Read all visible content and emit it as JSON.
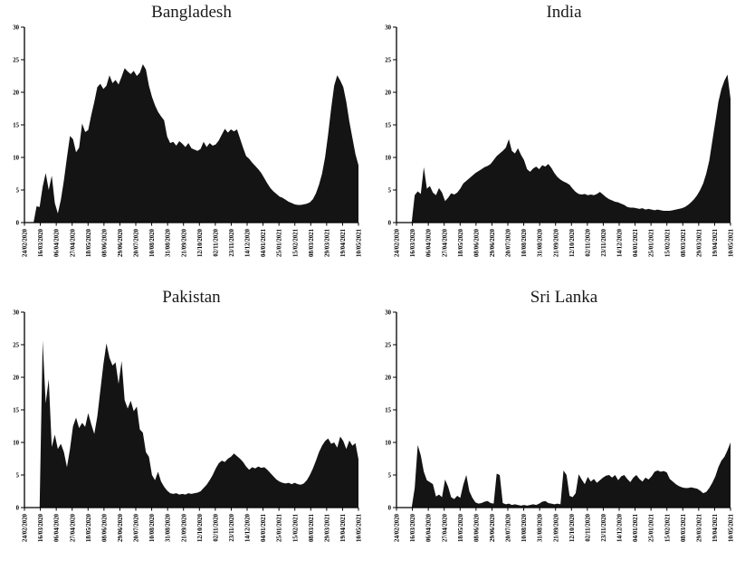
{
  "figure": {
    "background": "#ffffff",
    "ink": "#000000",
    "title_color": "#1a1a1a"
  },
  "chart_data": [
    {
      "type": "area",
      "title": "Bangladesh",
      "fill_color": "#141414",
      "ylim": [
        0,
        30
      ],
      "y_ticks": [
        0,
        5,
        10,
        15,
        20,
        25,
        30
      ],
      "x_range": [
        "24/02/2020",
        "10/05/2021"
      ],
      "x_labels": [
        "24/02/2020",
        "16/03/2020",
        "06/04/2020",
        "27/04/2020",
        "18/05/2020",
        "08/06/2020",
        "29/06/2020",
        "20/07/2020",
        "10/08/2020",
        "31/08/2020",
        "21/09/2020",
        "12/10/2020",
        "02/11/2020",
        "23/11/2020",
        "14/12/2020",
        "04/01/2021",
        "25/01/2021",
        "15/02/2021",
        "08/03/2021",
        "29/03/2021",
        "19/04/2021",
        "10/05/2021"
      ],
      "values": [
        0,
        0,
        0,
        0,
        2.5,
        2.4,
        5.5,
        7.6,
        5.0,
        7.2,
        3.0,
        1.4,
        3.5,
        6.5,
        10.0,
        13.3,
        12.8,
        10.8,
        11.5,
        15.2,
        13.9,
        14.2,
        16.5,
        18.5,
        20.8,
        21.3,
        20.5,
        21.0,
        22.6,
        21.4,
        21.9,
        21.2,
        22.4,
        23.7,
        23.2,
        22.8,
        23.3,
        22.5,
        23.0,
        24.3,
        23.5,
        21.0,
        19.3,
        18.0,
        17.0,
        16.3,
        15.7,
        13.2,
        12.2,
        12.4,
        11.8,
        12.5,
        12.1,
        11.6,
        12.2,
        11.4,
        11.2,
        11.0,
        11.3,
        12.4,
        11.6,
        12.2,
        11.8,
        12.0,
        12.6,
        13.5,
        14.4,
        13.8,
        14.3,
        14.0,
        14.3,
        12.9,
        11.5,
        10.2,
        9.8,
        9.2,
        8.7,
        8.2,
        7.6,
        6.8,
        6.0,
        5.3,
        4.8,
        4.4,
        4.0,
        3.8,
        3.5,
        3.2,
        3.0,
        2.8,
        2.7,
        2.7,
        2.8,
        2.9,
        3.1,
        3.6,
        4.5,
        5.8,
        7.5,
        10.0,
        13.5,
        17.5,
        21.0,
        22.6,
        21.8,
        20.8,
        18.5,
        15.5,
        13.0,
        10.5,
        8.8
      ]
    },
    {
      "type": "area",
      "title": "India",
      "fill_color": "#141414",
      "ylim": [
        0,
        30
      ],
      "y_ticks": [
        0,
        5,
        10,
        15,
        20,
        25,
        30
      ],
      "x_range": [
        "24/02/2020",
        "10/05/2021"
      ],
      "x_labels": [
        "24/02/2020",
        "16/03/2020",
        "06/04/2020",
        "27/04/2020",
        "18/05/2020",
        "08/06/2020",
        "29/06/2020",
        "20/07/2020",
        "10/08/2020",
        "31/08/2020",
        "21/09/2020",
        "12/10/2020",
        "02/11/2020",
        "23/11/2020",
        "14/12/2020",
        "04/01/2021",
        "25/01/2021",
        "15/02/2021",
        "08/03/2021",
        "29/03/2021",
        "19/04/2021",
        "10/05/2021"
      ],
      "values": [
        0,
        0,
        0,
        0,
        0,
        0,
        4.2,
        4.8,
        4.4,
        8.5,
        5.2,
        5.6,
        4.6,
        4.2,
        5.3,
        4.6,
        3.3,
        3.8,
        4.5,
        4.3,
        4.6,
        5.2,
        6.0,
        6.4,
        6.8,
        7.2,
        7.6,
        7.9,
        8.2,
        8.5,
        8.7,
        9.0,
        9.6,
        10.2,
        10.6,
        11.0,
        11.5,
        12.8,
        11.0,
        10.6,
        11.4,
        10.4,
        9.6,
        8.2,
        7.8,
        8.3,
        8.6,
        8.2,
        8.8,
        8.6,
        9.0,
        8.4,
        7.6,
        7.0,
        6.6,
        6.3,
        6.1,
        5.8,
        5.2,
        4.7,
        4.4,
        4.3,
        4.4,
        4.2,
        4.3,
        4.2,
        4.4,
        4.7,
        4.3,
        3.9,
        3.6,
        3.4,
        3.2,
        3.1,
        2.9,
        2.7,
        2.4,
        2.3,
        2.3,
        2.2,
        2.1,
        2.2,
        2.0,
        2.1,
        2.0,
        1.9,
        2.0,
        1.9,
        1.8,
        1.8,
        1.8,
        1.9,
        2.0,
        2.1,
        2.2,
        2.4,
        2.7,
        3.1,
        3.6,
        4.2,
        5.0,
        6.0,
        7.5,
        9.5,
        12.5,
        15.5,
        18.5,
        20.5,
        21.8,
        22.7,
        19.0
      ]
    },
    {
      "type": "area",
      "title": "Pakistan",
      "fill_color": "#141414",
      "ylim": [
        0,
        30
      ],
      "y_ticks": [
        0,
        5,
        10,
        15,
        20,
        25,
        30
      ],
      "x_range": [
        "24/02/2020",
        "10/05/2021"
      ],
      "x_labels": [
        "24/02/2020",
        "16/03/2020",
        "06/04/2020",
        "27/04/2020",
        "18/05/2020",
        "08/06/2020",
        "29/06/2020",
        "20/07/2020",
        "10/08/2020",
        "31/08/2020",
        "21/09/2020",
        "12/10/2020",
        "02/11/2020",
        "23/11/2020",
        "14/12/2020",
        "04/01/2021",
        "25/01/2021",
        "15/02/2021",
        "08/03/2021",
        "29/03/2021",
        "19/04/2021",
        "10/05/2021"
      ],
      "values": [
        0,
        0,
        0,
        0,
        0,
        0,
        25.6,
        16.0,
        19.7,
        9.3,
        11.2,
        9.0,
        9.8,
        8.5,
        6.2,
        9.0,
        12.5,
        13.8,
        12.2,
        13.0,
        12.4,
        14.5,
        12.8,
        11.3,
        14.0,
        18.0,
        22.0,
        25.2,
        23.0,
        21.8,
        22.3,
        19.0,
        22.5,
        16.5,
        15.2,
        16.4,
        14.8,
        15.5,
        12.0,
        11.5,
        8.5,
        7.8,
        5.0,
        4.2,
        5.5,
        4.0,
        3.2,
        2.6,
        2.2,
        2.1,
        2.2,
        2.0,
        2.1,
        2.0,
        2.2,
        2.1,
        2.2,
        2.3,
        2.5,
        3.0,
        3.5,
        4.2,
        5.0,
        6.0,
        6.8,
        7.2,
        7.0,
        7.5,
        7.8,
        8.3,
        7.9,
        7.5,
        7.0,
        6.3,
        5.8,
        6.2,
        6.0,
        6.3,
        6.1,
        6.2,
        5.8,
        5.3,
        4.8,
        4.3,
        4.0,
        3.8,
        3.7,
        3.8,
        3.6,
        3.8,
        3.6,
        3.5,
        3.7,
        4.2,
        5.0,
        6.0,
        7.2,
        8.5,
        9.5,
        10.2,
        10.6,
        9.8,
        10.0,
        9.2,
        10.9,
        10.2,
        9.0,
        10.3,
        9.5,
        9.9,
        7.4
      ]
    },
    {
      "type": "area",
      "title": "Sri Lanka",
      "fill_color": "#141414",
      "ylim": [
        0,
        30
      ],
      "y_ticks": [
        0,
        5,
        10,
        15,
        20,
        25,
        30
      ],
      "x_range": [
        "24/02/2020",
        "10/05/2021"
      ],
      "x_labels": [
        "24/02/2020",
        "16/03/2020",
        "06/04/2020",
        "27/04/2020",
        "18/05/2020",
        "08/06/2020",
        "29/06/2020",
        "20/07/2020",
        "10/08/2020",
        "31/08/2020",
        "21/09/2020",
        "12/10/2020",
        "02/11/2020",
        "23/11/2020",
        "14/12/2020",
        "04/01/2021",
        "25/01/2021",
        "15/02/2021",
        "08/03/2021",
        "29/03/2021",
        "19/04/2021",
        "10/05/2021"
      ],
      "values": [
        0,
        0,
        0,
        0,
        0,
        0,
        3.0,
        9.6,
        8.0,
        5.5,
        4.2,
        3.9,
        3.6,
        1.7,
        2.0,
        1.6,
        4.3,
        3.2,
        1.6,
        1.3,
        1.8,
        1.5,
        3.5,
        5.0,
        2.5,
        1.5,
        0.8,
        0.6,
        0.7,
        0.9,
        1.0,
        0.7,
        0.6,
        5.2,
        5.0,
        0.7,
        0.5,
        0.6,
        0.4,
        0.5,
        0.4,
        0.3,
        0.4,
        0.3,
        0.4,
        0.5,
        0.4,
        0.6,
        0.9,
        1.0,
        0.7,
        0.6,
        0.5,
        0.6,
        0.5,
        5.7,
        5.0,
        1.8,
        1.6,
        2.2,
        5.1,
        4.3,
        3.6,
        4.7,
        4.0,
        4.4,
        3.8,
        4.2,
        4.6,
        4.9,
        5.0,
        4.6,
        5.0,
        4.2,
        4.8,
        5.0,
        4.4,
        3.9,
        4.6,
        5.0,
        4.4,
        4.0,
        4.6,
        4.3,
        4.8,
        5.5,
        5.7,
        5.5,
        5.6,
        5.4,
        4.4,
        4.0,
        3.6,
        3.3,
        3.1,
        3.0,
        3.0,
        3.1,
        3.0,
        2.9,
        2.6,
        2.2,
        2.4,
        3.0,
        3.8,
        4.8,
        6.2,
        7.2,
        7.8,
        8.8,
        10.0
      ]
    }
  ]
}
